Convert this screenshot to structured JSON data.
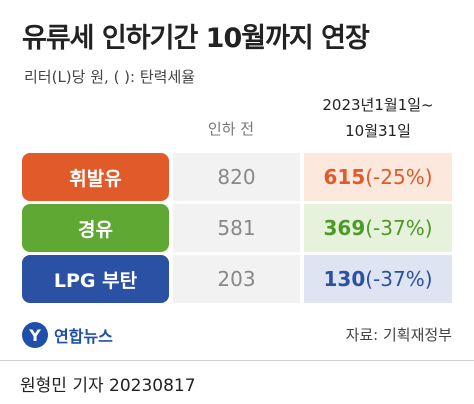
{
  "title": "유류세 인하기간 10월까지 연장",
  "unit_note": "리터(L)당 원, ( ): 탄력세율",
  "headers": {
    "before": "인하 전",
    "after_line1": "2023년1월1일~",
    "after_line2": "10월31일"
  },
  "rows": [
    {
      "label": "휘발유",
      "before": "820",
      "after": "615",
      "rate": "(-25%)",
      "label_color": "#e15b2a",
      "label_bg": "#e15b2a",
      "after_bg": "#fce8dd",
      "after_color": "#e15b2a"
    },
    {
      "label": "경유",
      "before": "581",
      "after": "369",
      "rate": "(-37%)",
      "label_color": "#5fa834",
      "label_bg": "#5fa834",
      "after_bg": "#e7f2dc",
      "after_color": "#4d9a26"
    },
    {
      "label": "LPG 부탄",
      "before": "203",
      "after": "130",
      "rate": "(-37%)",
      "label_color": "#2a51a3",
      "label_bg": "#2a51a3",
      "after_bg": "#dfe4f3",
      "after_color": "#2a51a3"
    }
  ],
  "logo": {
    "mark": "Y",
    "text": "연합뉴스"
  },
  "source": "자료: 기획재정부",
  "byline": "원형민 기자  20230817"
}
